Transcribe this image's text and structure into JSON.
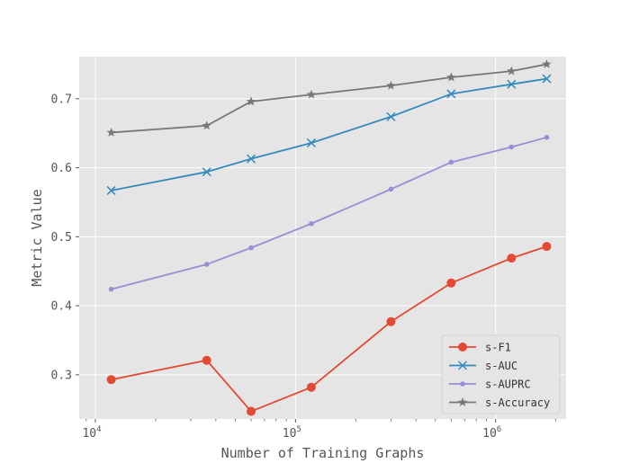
{
  "chart_data": {
    "type": "line",
    "title": "",
    "xlabel": "Number of Training Graphs",
    "ylabel": "Metric Value",
    "xscale": "log",
    "xlim": [
      8300,
      2250000
    ],
    "ylim": [
      0.236,
      0.761
    ],
    "grid": true,
    "legend_position": "lower-right",
    "x": [
      12000,
      36000,
      60000,
      120000,
      300000,
      600000,
      1200000,
      1800000
    ],
    "x_ticks": [
      {
        "value": 10000,
        "base": "10",
        "exp": "4"
      },
      {
        "value": 100000,
        "base": "10",
        "exp": "5"
      },
      {
        "value": 1000000,
        "base": "10",
        "exp": "6"
      }
    ],
    "y_ticks": [
      "0.3",
      "0.4",
      "0.5",
      "0.6",
      "0.7"
    ],
    "series": [
      {
        "name": "s-F1",
        "color": "#E24A33",
        "marker": "circle",
        "values": [
          0.293,
          0.321,
          0.247,
          0.282,
          0.377,
          0.433,
          0.469,
          0.486
        ]
      },
      {
        "name": "s-AUC",
        "color": "#348ABD",
        "marker": "x",
        "values": [
          0.567,
          0.594,
          0.613,
          0.636,
          0.674,
          0.707,
          0.721,
          0.729
        ]
      },
      {
        "name": "s-AUPRC",
        "color": "#988ED5",
        "marker": "dot",
        "values": [
          0.424,
          0.46,
          0.484,
          0.519,
          0.569,
          0.608,
          0.63,
          0.644
        ]
      },
      {
        "name": "s-Accuracy",
        "color": "#777777",
        "marker": "star",
        "values": [
          0.651,
          0.661,
          0.696,
          0.706,
          0.719,
          0.731,
          0.74,
          0.75
        ]
      }
    ]
  }
}
